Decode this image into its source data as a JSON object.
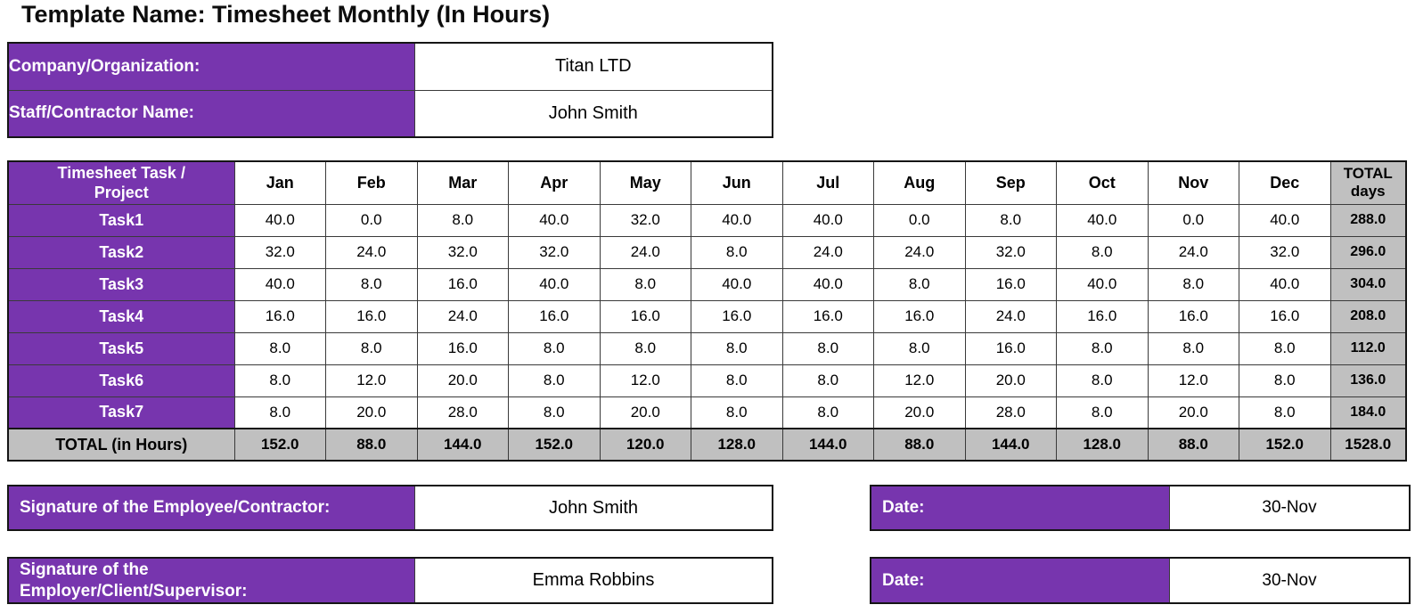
{
  "title": "Template Name: Timesheet Monthly (In Hours)",
  "info": {
    "rows": [
      {
        "label": "Company/Organization:",
        "value": "Titan LTD"
      },
      {
        "label": "Staff/Contractor Name:",
        "value": "John Smith"
      }
    ]
  },
  "timesheet": {
    "task_header": "Timesheet Task /\nProject",
    "months": [
      "Jan",
      "Feb",
      "Mar",
      "Apr",
      "May",
      "Jun",
      "Jul",
      "Aug",
      "Sep",
      "Oct",
      "Nov",
      "Dec"
    ],
    "total_header": "TOTAL\ndays",
    "rows": [
      {
        "task": "Task1",
        "values": [
          "40.0",
          "0.0",
          "8.0",
          "40.0",
          "32.0",
          "40.0",
          "40.0",
          "0.0",
          "8.0",
          "40.0",
          "0.0",
          "40.0"
        ],
        "total": "288.0"
      },
      {
        "task": "Task2",
        "values": [
          "32.0",
          "24.0",
          "32.0",
          "32.0",
          "24.0",
          "8.0",
          "24.0",
          "24.0",
          "32.0",
          "8.0",
          "24.0",
          "32.0"
        ],
        "total": "296.0"
      },
      {
        "task": "Task3",
        "values": [
          "40.0",
          "8.0",
          "16.0",
          "40.0",
          "8.0",
          "40.0",
          "40.0",
          "8.0",
          "16.0",
          "40.0",
          "8.0",
          "40.0"
        ],
        "total": "304.0"
      },
      {
        "task": "Task4",
        "values": [
          "16.0",
          "16.0",
          "24.0",
          "16.0",
          "16.0",
          "16.0",
          "16.0",
          "16.0",
          "24.0",
          "16.0",
          "16.0",
          "16.0"
        ],
        "total": "208.0"
      },
      {
        "task": "Task5",
        "values": [
          "8.0",
          "8.0",
          "16.0",
          "8.0",
          "8.0",
          "8.0",
          "8.0",
          "8.0",
          "16.0",
          "8.0",
          "8.0",
          "8.0"
        ],
        "total": "112.0"
      },
      {
        "task": "Task6",
        "values": [
          "8.0",
          "12.0",
          "20.0",
          "8.0",
          "12.0",
          "8.0",
          "8.0",
          "12.0",
          "20.0",
          "8.0",
          "12.0",
          "8.0"
        ],
        "total": "136.0"
      },
      {
        "task": "Task7",
        "values": [
          "8.0",
          "20.0",
          "28.0",
          "8.0",
          "20.0",
          "8.0",
          "8.0",
          "20.0",
          "28.0",
          "8.0",
          "20.0",
          "8.0"
        ],
        "total": "184.0"
      }
    ],
    "total_row": {
      "label": "TOTAL (in Hours)",
      "values": [
        "152.0",
        "88.0",
        "144.0",
        "152.0",
        "120.0",
        "128.0",
        "144.0",
        "88.0",
        "144.0",
        "128.0",
        "88.0",
        "152.0"
      ],
      "total": "1528.0"
    }
  },
  "signatures": [
    {
      "label": "Signature of the Employee/Contractor:",
      "value": "John Smith"
    },
    {
      "label": "Signature of the\nEmployer/Client/Supervisor:",
      "value": "Emma Robbins"
    }
  ],
  "dates": [
    {
      "label": "Date:",
      "value": "30-Nov"
    },
    {
      "label": "Date:",
      "value": "30-Nov"
    }
  ],
  "colors": {
    "purple": "#7735AE",
    "total_gray": "#C0C0C0",
    "border": "#3A3A3A",
    "frame": "#151515"
  }
}
